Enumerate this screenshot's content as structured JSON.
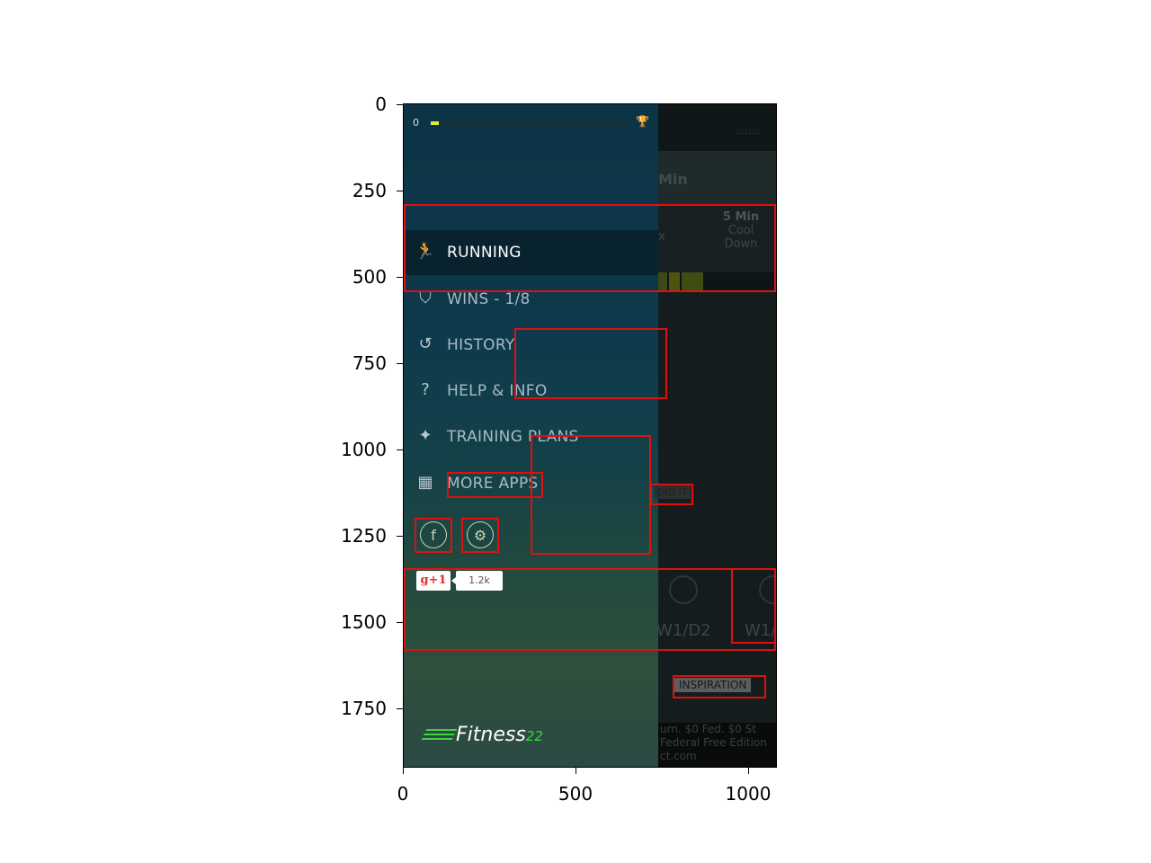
{
  "axes": {
    "y_ticks": [
      "0",
      "250",
      "500",
      "750",
      "1000",
      "1250",
      "1500",
      "1750"
    ],
    "x_ticks": [
      "0",
      "500",
      "1000"
    ]
  },
  "drawer": {
    "progress_start": "0",
    "progress_value": 0.04,
    "trophy_icon": "trophy-icon",
    "menu": [
      {
        "label": "RUNNING",
        "icon": "runner-icon",
        "glyph": "🏃",
        "active": true
      },
      {
        "label": "WINS - 1/8",
        "icon": "shield-icon",
        "glyph": "⛉",
        "active": false
      },
      {
        "label": "HISTORY",
        "icon": "history-icon",
        "glyph": "↺",
        "active": false
      },
      {
        "label": "HELP & INFO",
        "icon": "question-icon",
        "glyph": "?",
        "active": false
      },
      {
        "label": "TRAINING PLANS",
        "icon": "plans-icon",
        "glyph": "✦",
        "active": false
      },
      {
        "label": "MORE APPS",
        "icon": "grid-icon",
        "glyph": "▦",
        "active": false
      }
    ],
    "facebook_glyph": "f",
    "settings_glyph": "⚙",
    "gplus_label": "g+1",
    "gplus_count": "1.2k",
    "logo_text": "Fitness",
    "logo_accent": "22"
  },
  "background_app": {
    "header_text": "Min",
    "segment": {
      "time": "5 Min",
      "label_line1": "Cool",
      "label_line2": "Down"
    },
    "partial_seg_text": "x",
    "did_it": "DID IT",
    "day_labels": [
      "W1/D2",
      "W1/"
    ],
    "inspiration": "INSPIRATION",
    "ad_lines": [
      "urn. $0 Fed. $0 St",
      "Federal Free Edition",
      "ct.com"
    ]
  },
  "colors": {
    "annotation": "#e01010",
    "progress_fill": "#d9f22a",
    "logo_accent": "#3fd43f"
  }
}
